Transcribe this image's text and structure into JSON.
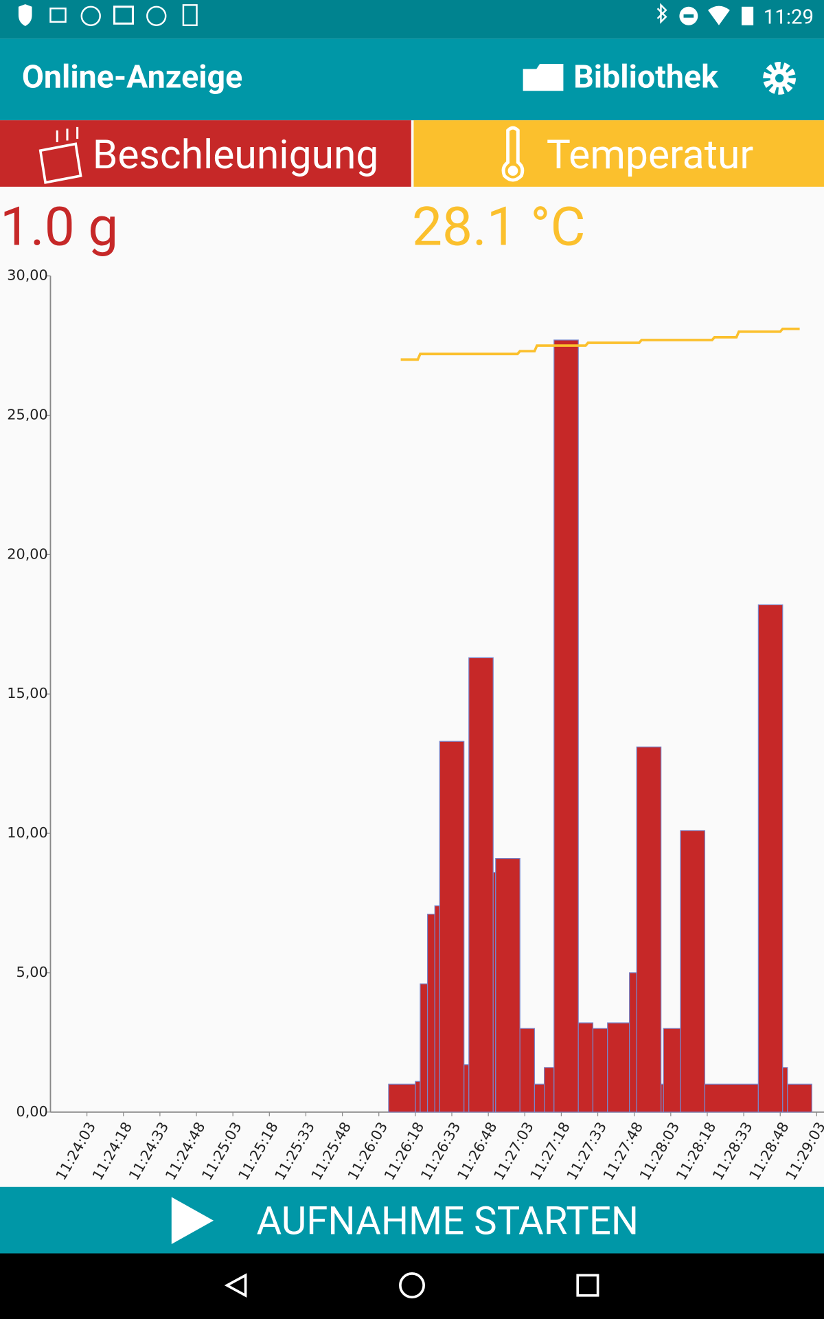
{
  "status_bar": {
    "time": "11:29"
  },
  "app_bar": {
    "title": "Online-Anzeige",
    "library": "Bibliothek"
  },
  "tabs": [
    {
      "label": "Beschleunigung",
      "reading": "1.0 g"
    },
    {
      "label": "Temperatur",
      "reading": "28.1 °C"
    }
  ],
  "chart_data": {
    "type": "bar",
    "xlim": [
      "11:23:48",
      "11:29:06"
    ],
    "xticks": [
      "11:24:03",
      "11:24:18",
      "11:24:33",
      "11:24:48",
      "11:25:03",
      "11:25:18",
      "11:25:33",
      "11:25:48",
      "11:26:03",
      "11:26:18",
      "11:26:33",
      "11:26:48",
      "11:27:03",
      "11:27:18",
      "11:27:33",
      "11:27:48",
      "11:28:03",
      "11:28:18",
      "11:28:33",
      "11:28:48",
      "11:29:03"
    ],
    "ylim": [
      0,
      30
    ],
    "yticks": [
      {
        "value": 0,
        "label": "0,00"
      },
      {
        "value": 5,
        "label": "5,00"
      },
      {
        "value": 10,
        "label": "10,00"
      },
      {
        "value": 15,
        "label": "15,00"
      },
      {
        "value": 20,
        "label": "20,00"
      },
      {
        "value": 25,
        "label": "25,00"
      },
      {
        "value": 30,
        "label": "30,00"
      }
    ],
    "series": [
      {
        "type": "bar",
        "color": "#c62828",
        "bins": [
          "11:26:07",
          "11:26:18",
          "11:26:20",
          "11:26:23",
          "11:26:26",
          "11:26:28",
          "11:26:38",
          "11:26:40",
          "11:26:50",
          "11:26:51",
          "11:27:01",
          "11:27:07",
          "11:27:11",
          "11:27:15",
          "11:27:25",
          "11:27:31",
          "11:27:37",
          "11:27:46",
          "11:27:49",
          "11:27:59",
          "11:28:00",
          "11:28:07",
          "11:28:17",
          "11:28:39",
          "11:28:49",
          "11:28:51",
          "11:29:01"
        ],
        "values": [
          1.0,
          1.1,
          4.6,
          7.1,
          7.4,
          13.3,
          1.7,
          16.3,
          8.6,
          9.1,
          3.0,
          1.0,
          1.6,
          27.7,
          3.2,
          3.0,
          3.2,
          5.0,
          13.1,
          1.0,
          3.0,
          10.1,
          1.0,
          18.2,
          1.6,
          1.0
        ]
      },
      {
        "type": "line",
        "color": "#fbc02d",
        "x": [
          "11:26:12",
          "11:26:19",
          "11:26:20",
          "11:27:00",
          "11:27:01",
          "11:27:07",
          "11:27:08",
          "11:27:28",
          "11:27:29",
          "11:27:50",
          "11:27:51",
          "11:28:20",
          "11:28:21",
          "11:28:30",
          "11:28:31",
          "11:28:48",
          "11:28:49",
          "11:28:56"
        ],
        "values": [
          27.0,
          27.0,
          27.2,
          27.2,
          27.3,
          27.3,
          27.5,
          27.5,
          27.6,
          27.6,
          27.7,
          27.7,
          27.8,
          27.8,
          28.0,
          28.0,
          28.1,
          28.1
        ]
      }
    ]
  },
  "button": {
    "label": "AUFNAHME STARTEN"
  }
}
